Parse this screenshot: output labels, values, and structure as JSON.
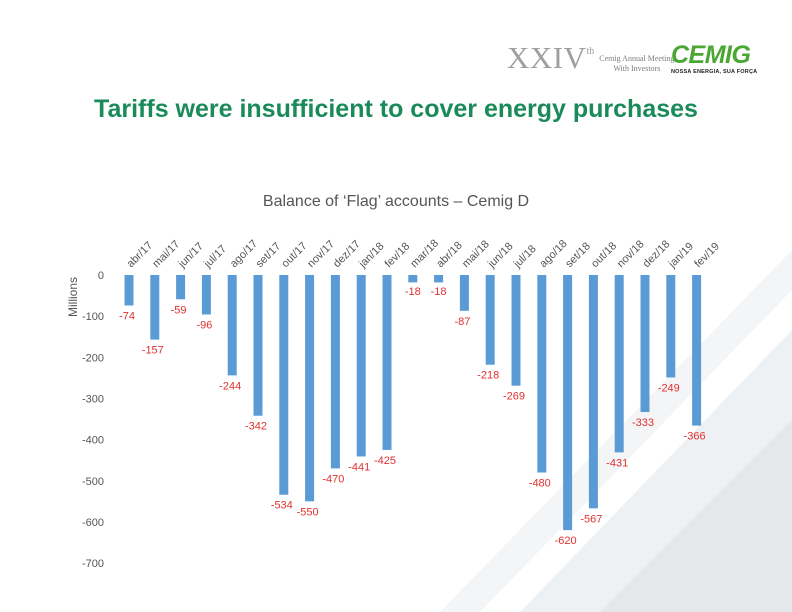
{
  "header": {
    "roman_numeral": "XXIV",
    "roman_suffix": "th",
    "event_line1": "Cemig Annual Meeting",
    "event_line2": "With Investors",
    "logo_word": "CEMIG",
    "logo_tagline": "NOSSA ENERGIA, SUA FORÇA"
  },
  "slide_title": "Tariffs were insufficient to cover energy purchases",
  "colors": {
    "title_green": "#1a8a5a",
    "bar_blue": "#5b9bd5",
    "label_red": "#e0312f"
  },
  "chart_data": {
    "type": "bar",
    "title": "Balance of ‘Flag’ accounts – Cemig D",
    "ylabel": "Millions",
    "xlabel": "",
    "categories": [
      "abr/17",
      "mai/17",
      "jun/17",
      "jul/17",
      "ago/17",
      "set/17",
      "out/17",
      "nov/17",
      "dez/17",
      "jan/18",
      "fev/18",
      "mar/18",
      "abr/18",
      "mai/18",
      "jun/18",
      "jul/18",
      "ago/18",
      "set/18",
      "out/18",
      "nov/18",
      "dez/18",
      "jan/19",
      "fev/19"
    ],
    "values": [
      -74,
      -157,
      -59,
      -96,
      -244,
      -342,
      -534,
      -550,
      -470,
      -441,
      -425,
      -18,
      -18,
      -87,
      -218,
      -269,
      -480,
      -620,
      -567,
      -431,
      -333,
      -249,
      -366
    ],
    "yticks": [
      0,
      -100,
      -200,
      -300,
      -400,
      -500,
      -600,
      -700
    ],
    "ylim": [
      -700,
      0
    ],
    "grid": false,
    "legend": "none",
    "data_labels": true
  }
}
